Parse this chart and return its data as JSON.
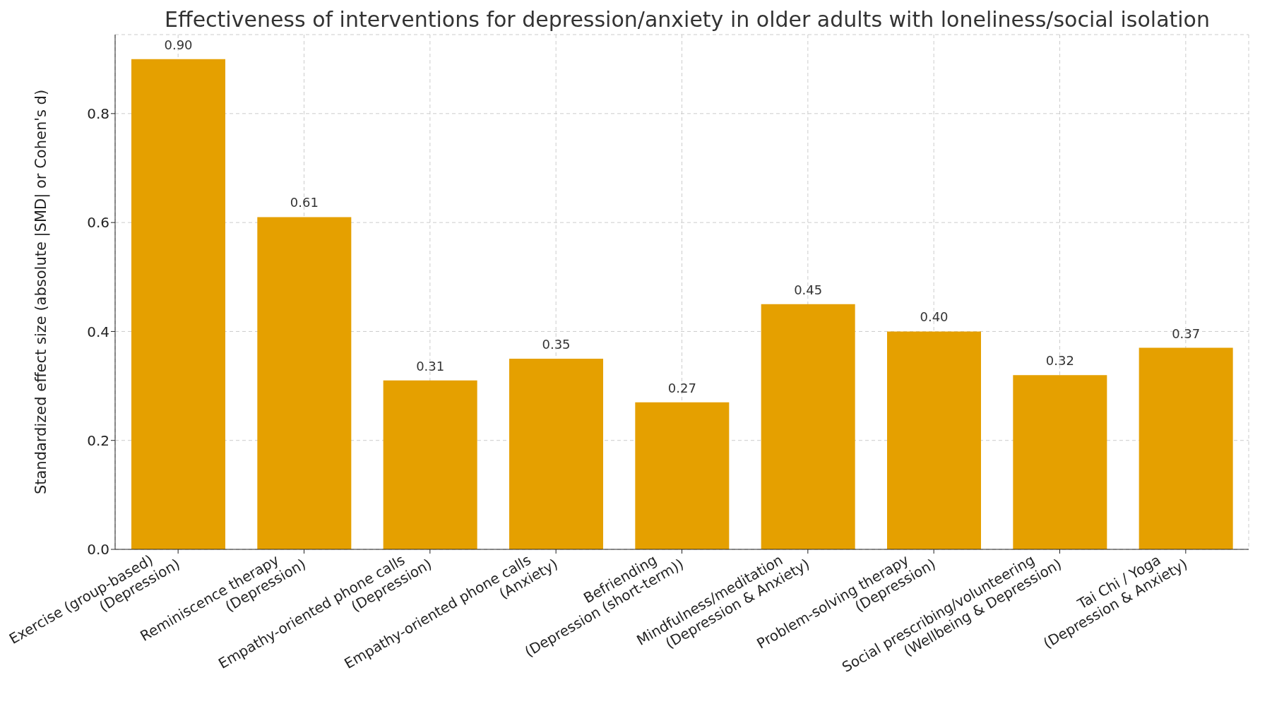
{
  "chart_data": {
    "type": "bar",
    "title": "Effectiveness of interventions for depression/anxiety in older adults with loneliness/social isolation",
    "ylabel": "Standardized effect size (absolute |SMD| or Cohen's d)",
    "categories": [
      "Exercise (group-based)\n(Depression)",
      "Reminiscence therapy\n(Depression)",
      "Empathy-oriented phone calls\n(Depression)",
      "Empathy-oriented phone calls\n(Anxiety)",
      "Befriending\n(Depression (short-term))",
      "Mindfulness/meditation\n(Depression & Anxiety)",
      "Problem-solving therapy\n(Depression)",
      "Social prescribing/volunteering\n(Wellbeing & Depression)",
      "Tai Chi / Yoga\n(Depression & Anxiety)"
    ],
    "values": [
      0.9,
      0.61,
      0.31,
      0.35,
      0.27,
      0.45,
      0.4,
      0.32,
      0.37
    ],
    "value_labels": [
      "0.90",
      "0.61",
      "0.31",
      "0.35",
      "0.27",
      "0.45",
      "0.40",
      "0.32",
      "0.37"
    ],
    "color": "#e5a000",
    "ylim": [
      0,
      0.945
    ],
    "yticks": [
      {
        "value": 0,
        "label": "0.0"
      },
      {
        "value": 0.2,
        "label": "0.2"
      },
      {
        "value": 0.4,
        "label": "0.4"
      },
      {
        "value": 0.6,
        "label": "0.6"
      },
      {
        "value": 0.8,
        "label": "0.8"
      }
    ],
    "grid": true
  }
}
